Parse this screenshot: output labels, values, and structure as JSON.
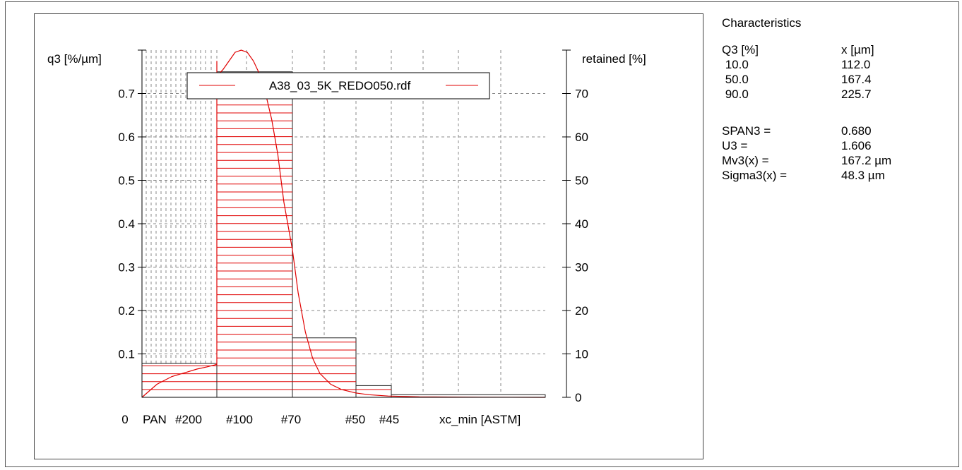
{
  "chart_data": {
    "type": "bar",
    "ylabel": "q3 [%/µm]",
    "ylabel_right": "retained [%]",
    "xlabel": "xc_min [ASTM]",
    "legend": {
      "label": "A38_03_5K_REDO050.rdf",
      "placement": "top",
      "color": "#e00000"
    },
    "yticks_left": [
      "0.1",
      "0.2",
      "0.3",
      "0.4",
      "0.5",
      "0.6",
      "0.7"
    ],
    "yticks_right": [
      "0",
      "10",
      "20",
      "30",
      "40",
      "50",
      "60",
      "70"
    ],
    "ylim_left": [
      0,
      0.8
    ],
    "ylim_right": [
      0,
      80
    ],
    "xticks": [
      "0",
      "PAN",
      "#200",
      "#100",
      "#70",
      "#50",
      "#45"
    ],
    "x_positions_um": {
      "0": 0,
      "PAN": 0,
      "#200": 75,
      "#100": 150,
      "#70": 212,
      "#50": 300,
      "#45": 355,
      "end": 600
    },
    "bars": [
      {
        "from": "0",
        "to": "#200",
        "retained_percent": 7.8
      },
      {
        "from": "#200",
        "to": "#70",
        "retained_percent": 75.0
      },
      {
        "from": "#70",
        "to": "#50",
        "retained_percent": 13.7
      },
      {
        "from": "#50",
        "to": "#45",
        "retained_percent": 2.7
      },
      {
        "from": "#45",
        "to": "end",
        "retained_percent": 0.6
      }
    ],
    "curve": {
      "x_um": [
        0,
        15,
        30,
        45,
        55,
        65,
        75,
        90,
        100,
        110,
        120,
        128,
        135,
        140,
        145,
        150,
        155,
        160,
        165,
        170,
        175,
        180,
        185,
        190,
        195,
        200,
        205,
        212,
        220,
        230,
        240,
        250,
        265,
        280,
        300,
        320,
        350,
        400,
        500,
        600
      ],
      "q3": [
        0.0,
        0.03,
        0.048,
        0.058,
        0.065,
        0.07,
        0.076,
        0.1,
        0.16,
        0.32,
        0.62,
        0.76,
        0.775,
        0.765,
        0.745,
        0.74,
        0.755,
        0.775,
        0.795,
        0.8,
        0.795,
        0.775,
        0.745,
        0.7,
        0.64,
        0.56,
        0.45,
        0.34,
        0.24,
        0.15,
        0.09,
        0.055,
        0.03,
        0.018,
        0.01,
        0.006,
        0.003,
        0.001,
        0.0003,
        0.0
      ]
    },
    "grid": true,
    "grid_style": "dashed"
  },
  "characteristics": {
    "title": "Characteristics",
    "header": {
      "q3": "Q3 [%]",
      "x": "x [µm]"
    },
    "quantiles": [
      {
        "q3": " 10.0",
        "x": "112.0"
      },
      {
        "q3": " 50.0",
        "x": "167.4"
      },
      {
        "q3": " 90.0",
        "x": "225.7"
      }
    ],
    "stats": [
      {
        "label": "SPAN3 =",
        "value": "0.680"
      },
      {
        "label": "U3 =",
        "value": "1.606"
      },
      {
        "label": "Mv3(x) =",
        "value": "167.2 µm"
      },
      {
        "label": "Sigma3(x) =",
        "value": "48.3 µm"
      }
    ]
  }
}
